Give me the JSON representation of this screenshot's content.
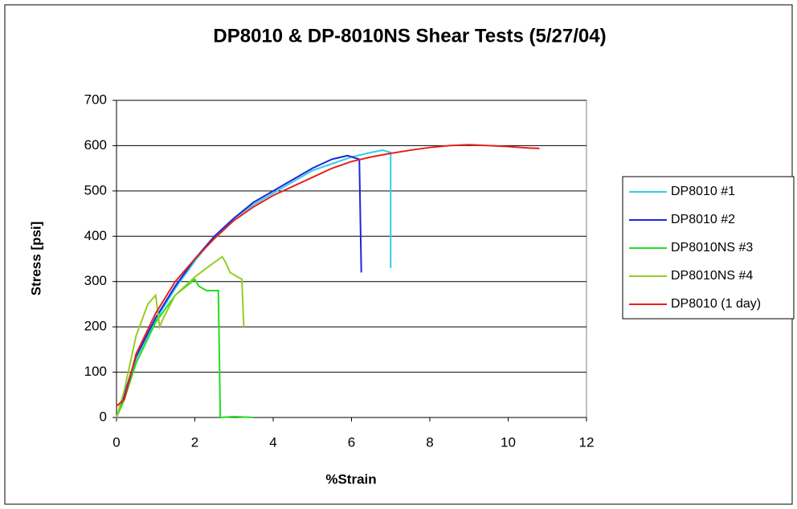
{
  "chart_data": {
    "type": "line",
    "title": "DP8010 & DP-8010NS Shear Tests (5/27/04)",
    "x_label": "%Strain",
    "y_label": "Stress [psi]",
    "xlim": [
      0,
      12
    ],
    "xticks": [
      0,
      2,
      4,
      6,
      8,
      10,
      12
    ],
    "ylim": [
      0,
      700
    ],
    "yticks": [
      0,
      100,
      200,
      300,
      400,
      500,
      600,
      700
    ],
    "grid": true,
    "legend": "right",
    "series": [
      {
        "name": "DP8010 #1",
        "color": "#33ccee",
        "x": [
          0,
          0.2,
          0.5,
          1,
          1.5,
          2,
          2.5,
          3,
          3.5,
          4,
          4.5,
          5,
          5.5,
          6,
          6.5,
          6.8,
          7.0,
          7.0
        ],
        "values": [
          0,
          50,
          130,
          215,
          285,
          345,
          400,
          440,
          470,
          495,
          520,
          545,
          560,
          575,
          585,
          590,
          585,
          330
        ]
      },
      {
        "name": "DP8010 #2",
        "color": "#1a2ad6",
        "x": [
          0,
          0.2,
          0.5,
          1,
          1.5,
          2,
          2.5,
          3,
          3.5,
          4,
          4.5,
          5,
          5.5,
          5.9,
          6.2,
          6.25
        ],
        "values": [
          0,
          50,
          135,
          220,
          290,
          350,
          400,
          440,
          475,
          500,
          525,
          550,
          570,
          578,
          570,
          320
        ]
      },
      {
        "name": "DP8010NS #3",
        "color": "#22dd22",
        "x": [
          0,
          0.2,
          0.5,
          1,
          1.5,
          2,
          2.1,
          2.3,
          2.6,
          2.65,
          3,
          3.5
        ],
        "values": [
          0,
          40,
          120,
          210,
          270,
          305,
          290,
          280,
          280,
          0,
          2,
          0
        ]
      },
      {
        "name": "DP8010NS #4",
        "color": "#99cc22",
        "x": [
          0,
          0.2,
          0.5,
          0.8,
          1,
          1.1,
          1.2,
          1.5,
          2,
          2.3,
          2.7,
          2.8,
          2.9,
          3.2,
          3.25
        ],
        "values": [
          0,
          60,
          180,
          250,
          270,
          200,
          220,
          270,
          310,
          330,
          355,
          340,
          320,
          305,
          200
        ]
      },
      {
        "name": "DP8010 (1 day)",
        "color": "#e8201a",
        "x": [
          0,
          0.2,
          0.5,
          1,
          1.5,
          2,
          2.5,
          3,
          3.5,
          4,
          4.5,
          5,
          5.5,
          6,
          6.5,
          7,
          7.5,
          8,
          8.5,
          9,
          9.5,
          10,
          10.5,
          10.8
        ],
        "values": [
          25,
          40,
          140,
          230,
          300,
          350,
          395,
          435,
          465,
          490,
          510,
          530,
          550,
          565,
          575,
          583,
          590,
          596,
          600,
          602,
          600,
          598,
          595,
          594
        ]
      }
    ]
  }
}
